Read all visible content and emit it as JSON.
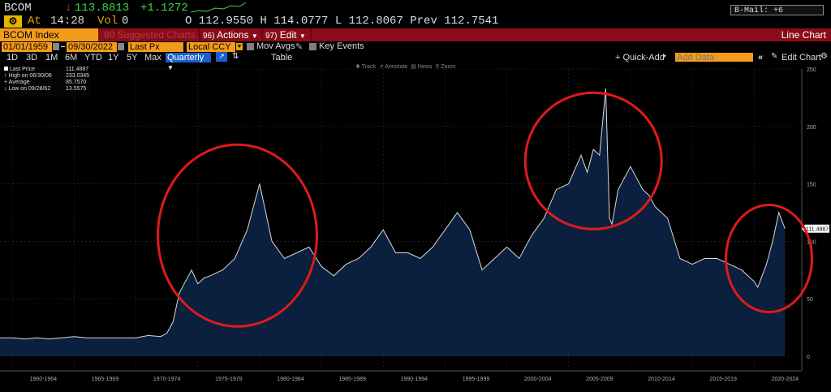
{
  "quote": {
    "ticker": "BCOM",
    "direction": "↓",
    "last": "113.8813",
    "change": "+1.1272",
    "at_label": "At",
    "time": "14:28",
    "vol_label": "Vol",
    "vol": "0",
    "ohlc_text": "O 112.9550 H 114.0777 L 112.8067 Prev 112.7541",
    "bmail": "B-Mail: +6"
  },
  "toolbar": {
    "index_label": "BCOM Index",
    "suggested": "80 Suggested Charts",
    "actions_num": "96)",
    "actions": "Actions",
    "edit_num": "97)",
    "edit": "Edit",
    "view_title": "Line Chart"
  },
  "controls": {
    "start_date": "01/01/1959",
    "end_date": "09/30/2022",
    "field": "Last Px",
    "currency": "Local CCY",
    "mov_avgs": "Mov Avgs",
    "key_events": "Key Events",
    "periods": [
      "1D",
      "3D",
      "1M",
      "6M",
      "YTD",
      "1Y",
      "5Y",
      "Max"
    ],
    "frequency": "Quarterly",
    "table": "Table",
    "quick_add": "+ Quick-Add",
    "add_data_placeholder": "Add Data",
    "edit_chart": "Edit Chart",
    "chart_tools": [
      "Track",
      "Annotate",
      "News",
      "Zoom"
    ]
  },
  "legend": {
    "last_price_label": "Last Price",
    "last_price": "111.4887",
    "high_label": "High on 06/30/08",
    "high": "233.0345",
    "avg_label": "Average",
    "avg": "85.7570",
    "low_label": "Low on 09/28/62",
    "low": "13.5575"
  },
  "chart_data": {
    "type": "area",
    "ylim": [
      -10,
      250
    ],
    "yticks": [
      0,
      50,
      100,
      150,
      200,
      250
    ],
    "xticklabels": [
      "1960-1964",
      "1965-1969",
      "1970-1974",
      "1975-1979",
      "1980-1984",
      "1985-1989",
      "1990-1994",
      "1995-1999",
      "2000-2004",
      "2005-2009",
      "2010-2014",
      "2015-2019",
      "2020-2024"
    ],
    "last_value_label": "111.4887",
    "series": [
      {
        "x": [
          1959,
          1960,
          1961,
          1962,
          1963,
          1964,
          1965,
          1966,
          1967,
          1968,
          1969,
          1970,
          1971,
          1972,
          1972.5,
          1973,
          1973.5,
          1974,
          1974.5,
          1975,
          1975.5,
          1976,
          1977,
          1978,
          1979,
          1979.5,
          1980,
          1980.5,
          1981,
          1982,
          1983,
          1984,
          1985,
          1986,
          1987,
          1988,
          1989,
          1990,
          1991,
          1992,
          1993,
          1994,
          1995,
          1996,
          1997,
          1998,
          1999,
          2000,
          2001,
          2002,
          2003,
          2004,
          2005,
          2006,
          2006.5,
          2007,
          2007.5,
          2008,
          2008.3,
          2008.5,
          2009,
          2010,
          2011,
          2011.5,
          2012,
          2013,
          2014,
          2015,
          2016,
          2017,
          2018,
          2019,
          2020,
          2020.3,
          2021,
          2021.5,
          2022,
          2022.5
        ],
        "values": [
          16,
          16,
          15,
          16,
          15,
          16,
          17,
          16,
          16,
          16,
          16,
          16,
          18,
          17,
          20,
          30,
          55,
          65,
          75,
          63,
          68,
          70,
          75,
          85,
          110,
          130,
          150,
          125,
          100,
          85,
          90,
          95,
          78,
          70,
          80,
          85,
          95,
          110,
          90,
          90,
          85,
          95,
          110,
          125,
          110,
          75,
          85,
          95,
          85,
          105,
          120,
          145,
          150,
          175,
          160,
          180,
          175,
          233,
          120,
          115,
          145,
          165,
          145,
          140,
          130,
          120,
          85,
          80,
          85,
          85,
          80,
          75,
          65,
          60,
          80,
          100,
          125,
          111
        ]
      }
    ]
  },
  "annotation_color": "#e01a1a"
}
